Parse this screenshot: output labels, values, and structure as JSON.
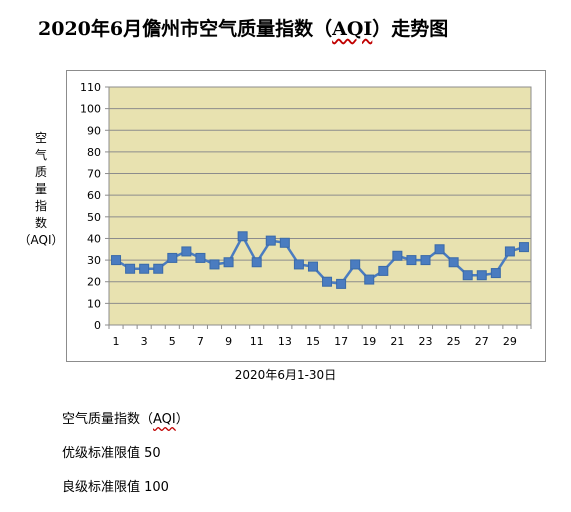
{
  "page": {
    "title_prefix": "2020年6月儋州市空气质量指数（",
    "title_aqi": "AQI",
    "title_suffix": "）走势图"
  },
  "notes": {
    "line1_prefix": "空气质量指数（",
    "line1_aqi": "AQI",
    "line1_suffix": "）",
    "line2": "优级标准限值 50",
    "line3": "良级标准限值 100"
  },
  "chart_data": {
    "type": "line",
    "title": "2020年6月儋州市空气质量指数（AQI）走势图",
    "ylabel": "空气质量指数（AQI）",
    "ylabel_chars": [
      "空",
      "气",
      "质",
      "量",
      "指",
      "数",
      "（AQI）"
    ],
    "xlabel": "2020年6月1-30日",
    "x": [
      1,
      2,
      3,
      4,
      5,
      6,
      7,
      8,
      9,
      10,
      11,
      12,
      13,
      14,
      15,
      16,
      17,
      18,
      19,
      20,
      21,
      22,
      23,
      24,
      25,
      26,
      27,
      28,
      29,
      30
    ],
    "x_tick_labels": [
      "1",
      "3",
      "5",
      "7",
      "9",
      "11",
      "13",
      "15",
      "17",
      "19",
      "21",
      "23",
      "25",
      "27",
      "29"
    ],
    "y_tick_labels": [
      "0",
      "10",
      "20",
      "30",
      "40",
      "50",
      "60",
      "70",
      "80",
      "90",
      "100",
      "110"
    ],
    "values": [
      30,
      26,
      26,
      26,
      31,
      34,
      31,
      28,
      29,
      41,
      29,
      39,
      38,
      28,
      27,
      20,
      19,
      28,
      21,
      25,
      32,
      30,
      30,
      35,
      29,
      23,
      23,
      24,
      34,
      36
    ],
    "ylim": [
      0,
      110
    ],
    "grid": true,
    "legend": "none",
    "colors": {
      "line": "#4a7cc0",
      "marker": "#4a7cc0",
      "plot_bg": "#e8e2b0",
      "grid": "#8c8c8c"
    }
  }
}
